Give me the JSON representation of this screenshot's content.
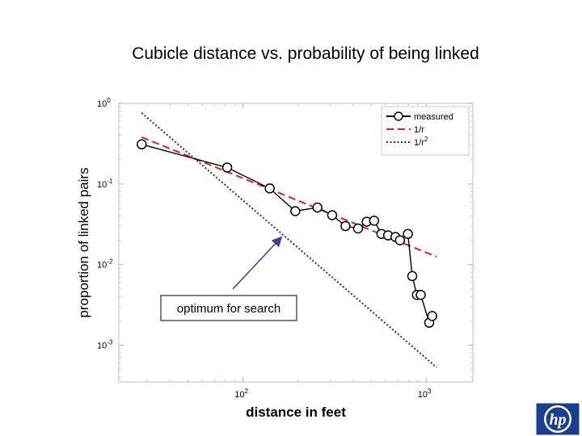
{
  "slide": {
    "title": "Cubicle distance vs. probability of being linked"
  },
  "chart_data": {
    "type": "line",
    "title": "Cubicle distance vs. probability of being linked",
    "xlabel": "distance in feet",
    "ylabel": "proportion of linked pairs",
    "x_scale": "log",
    "y_scale": "log",
    "xlim": [
      21,
      1800
    ],
    "ylim": [
      0.00035,
      1.0
    ],
    "x_ticks": [
      {
        "value": 100,
        "base": "10",
        "exp": "2"
      },
      {
        "value": 1000,
        "base": "10",
        "exp": "3"
      }
    ],
    "y_ticks": [
      {
        "value": 1,
        "base": "10",
        "exp": "0"
      },
      {
        "value": 0.1,
        "base": "10",
        "exp": "-1"
      },
      {
        "value": 0.01,
        "base": "10",
        "exp": "-2"
      },
      {
        "value": 0.001,
        "base": "10",
        "exp": "-3"
      }
    ],
    "grid": false,
    "legend_position": "top-right",
    "series": [
      {
        "name": "measured",
        "style": "solid-circles",
        "color": "#000000",
        "x": [
          28,
          82,
          140,
          193,
          255,
          307,
          363,
          425,
          474,
          520,
          570,
          620,
          680,
          720,
          795,
          840,
          890,
          935,
          1040,
          1080
        ],
        "y": [
          0.31,
          0.16,
          0.088,
          0.046,
          0.051,
          0.041,
          0.03,
          0.028,
          0.034,
          0.035,
          0.024,
          0.023,
          0.022,
          0.02,
          0.024,
          0.0072,
          0.0042,
          0.0042,
          0.0019,
          0.0023
        ]
      },
      {
        "name": "1/r",
        "name_base": "1/r",
        "name_sup": "",
        "style": "dashed",
        "color": "#e02020",
        "x": [
          28,
          1140
        ],
        "y": [
          0.38,
          0.0125
        ]
      },
      {
        "name": "1/r2",
        "name_base": "1/r",
        "name_sup": "2",
        "style": "dotted",
        "color": "#2424b0",
        "x": [
          28,
          1140
        ],
        "y": [
          0.76,
          0.00053
        ]
      }
    ],
    "annotation": {
      "text": "optimum for search",
      "arrow_color": "#4040a0"
    }
  },
  "logo": {
    "text": "hp",
    "color": "#1b3f8f"
  }
}
